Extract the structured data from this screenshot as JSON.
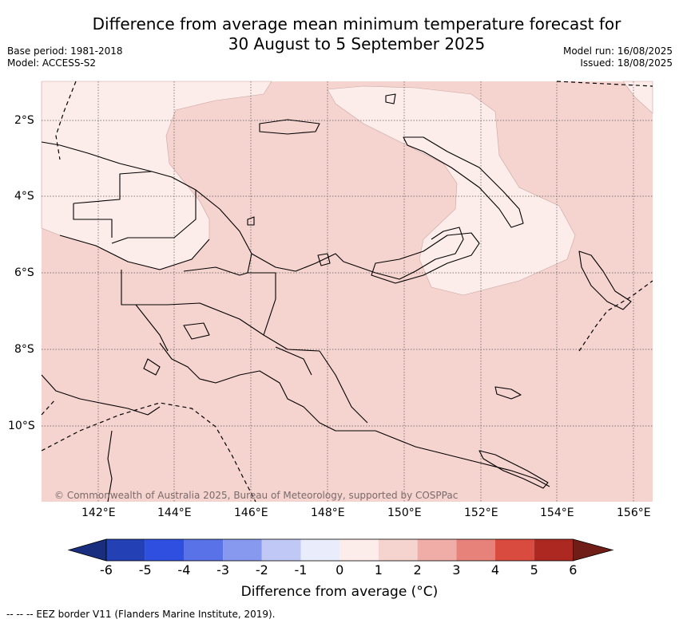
{
  "title_line1": "Difference from average mean minimum temperature forecast for",
  "title_line2": "30 August to 5 September 2025",
  "base_period": "Base period: 1981-2018",
  "model": "Model: ACCESS-S2",
  "model_run": "Model run: 16/08/2025",
  "issued": "Issued: 18/08/2025",
  "copyright": "© Commonwealth of Australia 2025, Bureau of Meteorology, supported by COSPPac",
  "lat_labels": [
    "2°S",
    "4°S",
    "6°S",
    "8°S",
    "10°S"
  ],
  "lon_labels": [
    "142°E",
    "144°E",
    "146°E",
    "148°E",
    "150°E",
    "152°E",
    "154°E",
    "156°E"
  ],
  "colorbar": {
    "label": "Difference from average (°C)",
    "ticks": [
      "-6",
      "-5",
      "-4",
      "-3",
      "-2",
      "-1",
      "0",
      "1",
      "2",
      "3",
      "4",
      "5",
      "6"
    ],
    "colors": [
      "#1a2e80",
      "#2340b5",
      "#2f4fe0",
      "#5a72e8",
      "#8799ee",
      "#c0c8f5",
      "#e8ecfb",
      "#fcecea",
      "#f5d3cf",
      "#f0aca6",
      "#e7827a",
      "#da4b3f",
      "#ad2821",
      "#701d18"
    ]
  },
  "footnote": "--  --  -- EEZ border V11 (Flanders Marine Institute, 2019).",
  "map_colors": {
    "anomaly_0_1": "#fcecea",
    "anomaly_1_2": "#f5d3cf"
  }
}
